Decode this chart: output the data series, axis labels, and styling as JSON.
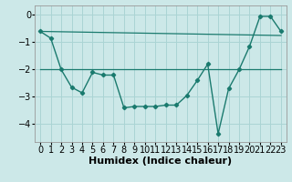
{
  "xlabel": "Humidex (Indice chaleur)",
  "background_color": "#cce8e8",
  "grid_color": "#aad4d4",
  "line_color": "#1a7a6e",
  "xlim": [
    -0.5,
    23.5
  ],
  "ylim": [
    -4.65,
    0.35
  ],
  "yticks": [
    0,
    -1,
    -2,
    -3,
    -4
  ],
  "xticks": [
    0,
    1,
    2,
    3,
    4,
    5,
    6,
    7,
    8,
    9,
    10,
    11,
    12,
    13,
    14,
    15,
    16,
    17,
    18,
    19,
    20,
    21,
    22,
    23
  ],
  "line1_x": [
    0,
    1,
    2,
    3,
    4,
    5,
    6,
    7,
    8,
    9,
    10,
    11,
    12,
    13,
    14,
    15,
    16,
    17,
    18,
    19,
    20,
    21,
    22,
    23
  ],
  "line1_y": [
    -0.6,
    -0.85,
    -2.0,
    -2.65,
    -2.85,
    -2.1,
    -2.2,
    -2.2,
    -3.4,
    -3.35,
    -3.35,
    -3.35,
    -3.3,
    -3.3,
    -2.95,
    -2.4,
    -1.8,
    -4.35,
    -2.7,
    -2.0,
    -1.15,
    -0.05,
    -0.05,
    -0.6
  ],
  "line2_x": [
    0,
    23
  ],
  "line2_y": [
    -2.0,
    -2.0
  ],
  "line3_x": [
    0,
    23
  ],
  "line3_y": [
    -0.6,
    -0.75
  ],
  "tick_fontsize": 7,
  "label_fontsize": 8
}
